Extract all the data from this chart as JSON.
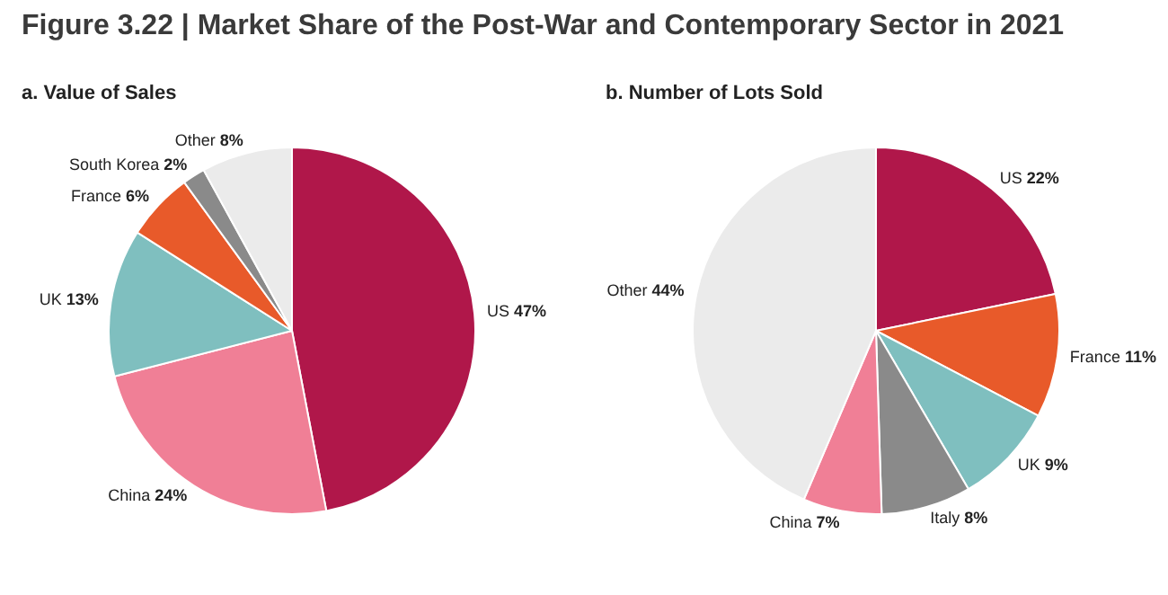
{
  "chart_data": [
    {
      "type": "pie",
      "title": "Figure 3.22 | Market Share of the Post-War and Contemporary Sector in 2021",
      "subtitle": "a. Value of Sales",
      "categories": [
        "US",
        "China",
        "UK",
        "France",
        "South Korea",
        "Other"
      ],
      "values": [
        47,
        24,
        13,
        6,
        2,
        8
      ],
      "value_labels": [
        "47%",
        "24%",
        "13%",
        "6%",
        "2%",
        "8%"
      ],
      "colors": [
        "#b0174a",
        "#f07f96",
        "#7fbfbf",
        "#e85a2a",
        "#8a8a8a",
        "#ebebeb"
      ]
    },
    {
      "type": "pie",
      "subtitle": "b. Number of Lots Sold",
      "categories": [
        "US",
        "France",
        "UK",
        "Italy",
        "China",
        "Other"
      ],
      "values": [
        22,
        11,
        9,
        8,
        7,
        44
      ],
      "value_labels": [
        "22%",
        "11%",
        "9%",
        "8%",
        "7%",
        "44%"
      ],
      "colors": [
        "#b0174a",
        "#e85a2a",
        "#7fbfbf",
        "#8a8a8a",
        "#f07f96",
        "#ebebeb"
      ]
    }
  ]
}
